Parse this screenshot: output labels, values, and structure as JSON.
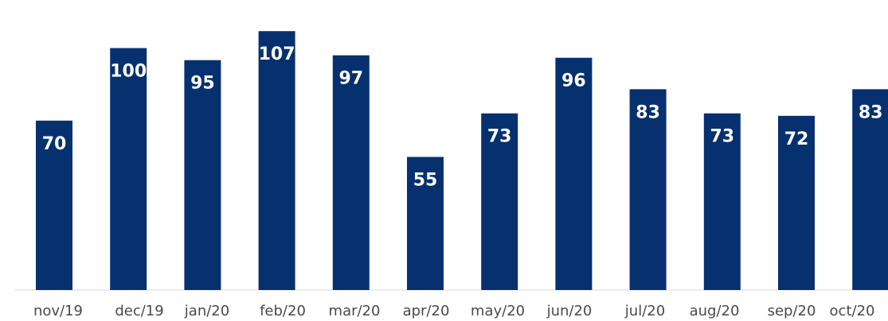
{
  "chart_data": {
    "type": "bar",
    "title": "",
    "xlabel": "",
    "ylabel": "",
    "categories": [
      "nov/19",
      "dec/19",
      "jan/20",
      "feb/20",
      "mar/20",
      "apr/20",
      "may/20",
      "jun/20",
      "jul/20",
      "aug/20",
      "sep/20",
      "oct/20"
    ],
    "values": [
      70,
      100,
      95,
      107,
      97,
      55,
      73,
      96,
      83,
      73,
      72,
      83
    ],
    "data_labels": [
      "70",
      "100",
      "95",
      "107",
      "97",
      "55",
      "73",
      "96",
      "83",
      "73",
      "72",
      "83"
    ],
    "ylim": [
      0,
      110
    ],
    "grid": false,
    "legend": "none",
    "colors": {
      "bar": "#07306f",
      "label": "#ffffff",
      "tick": "#4a4a4a",
      "axis": "#d9d9d9"
    }
  }
}
